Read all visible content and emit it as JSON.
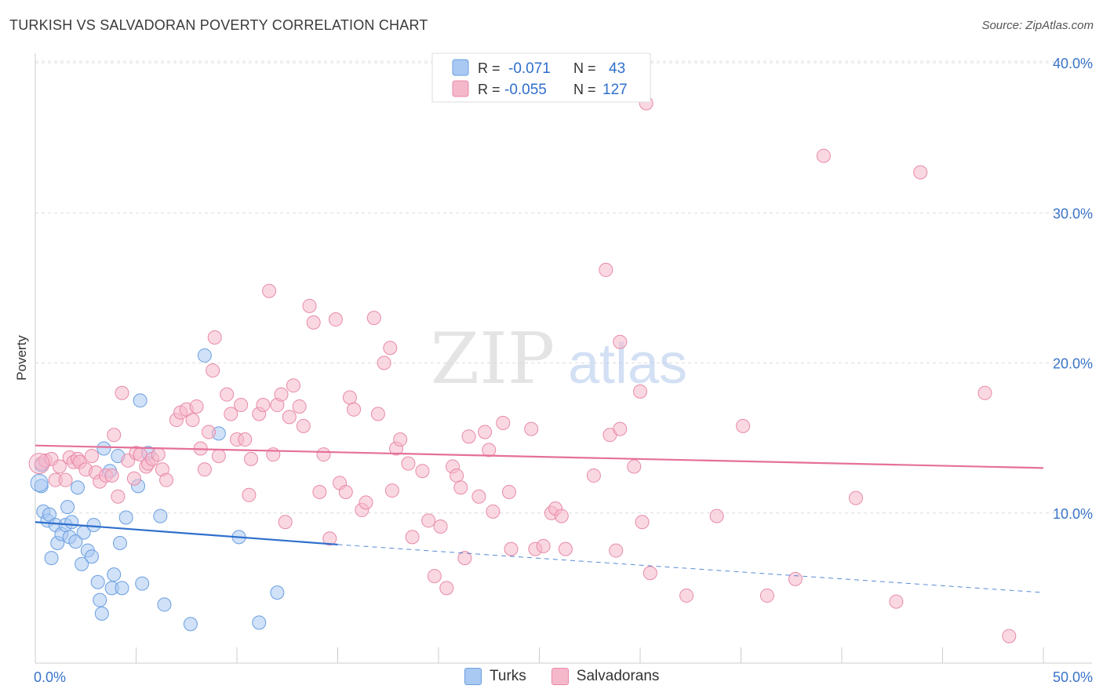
{
  "header": {
    "title": "TURKISH VS SALVADORAN POVERTY CORRELATION CHART",
    "source": "Source: ZipAtlas.com"
  },
  "watermark": {
    "zip": "ZIP",
    "atlas": "atlas"
  },
  "legend_top": {
    "rows": [
      {
        "r_label": "R =",
        "r_value": "-0.071",
        "n_label": "N =",
        "n_value": "43",
        "color": "#a9c8f2"
      },
      {
        "r_label": "R =",
        "r_value": "-0.055",
        "n_label": "N =",
        "n_value": "127",
        "color": "#f5b8cb"
      }
    ]
  },
  "legend_bottom": [
    {
      "label": "Turks",
      "color": "#a9c8f2"
    },
    {
      "label": "Salvadorans",
      "color": "#f5b8cb"
    }
  ],
  "chart_data": {
    "type": "scatter",
    "xlabel": "",
    "ylabel": "Poverty",
    "xlim": [
      0,
      50
    ],
    "ylim": [
      0,
      40
    ],
    "x_tick_labels": [
      "0.0%",
      "50.0%"
    ],
    "y_tick_labels": [
      "10.0%",
      "20.0%",
      "30.0%",
      "40.0%"
    ],
    "y_ticks": [
      10,
      20,
      30,
      40
    ],
    "grid": true,
    "legend_placement": "top-center",
    "series": [
      {
        "name": "Turks",
        "color": "#a9c8f2",
        "stroke": "#6a9fe0",
        "trend": {
          "x0": 0,
          "y0": 9.4,
          "x1": 15,
          "y1": 7.9,
          "extend_to": 50,
          "extend_y": 4.7,
          "color": "#2f6fcc"
        },
        "points": [
          [
            0.3,
            13.2
          ],
          [
            0.3,
            11.8
          ],
          [
            0.4,
            10.1
          ],
          [
            0.6,
            9.5
          ],
          [
            0.7,
            9.9
          ],
          [
            0.8,
            7.0
          ],
          [
            1.0,
            9.2
          ],
          [
            1.1,
            8.0
          ],
          [
            1.3,
            8.6
          ],
          [
            1.5,
            9.2
          ],
          [
            1.6,
            10.4
          ],
          [
            1.7,
            8.4
          ],
          [
            1.8,
            9.4
          ],
          [
            2.0,
            8.1
          ],
          [
            2.1,
            11.7
          ],
          [
            2.3,
            6.6
          ],
          [
            2.4,
            8.7
          ],
          [
            2.6,
            7.5
          ],
          [
            2.8,
            7.1
          ],
          [
            2.9,
            9.2
          ],
          [
            3.1,
            5.4
          ],
          [
            3.2,
            4.2
          ],
          [
            3.3,
            3.3
          ],
          [
            3.4,
            14.3
          ],
          [
            3.7,
            12.8
          ],
          [
            3.8,
            5.0
          ],
          [
            3.9,
            5.9
          ],
          [
            4.1,
            13.8
          ],
          [
            4.2,
            8.0
          ],
          [
            4.3,
            5.0
          ],
          [
            4.5,
            9.7
          ],
          [
            5.1,
            11.8
          ],
          [
            5.2,
            17.5
          ],
          [
            5.3,
            5.3
          ],
          [
            5.6,
            14.0
          ],
          [
            6.2,
            9.8
          ],
          [
            6.4,
            3.9
          ],
          [
            7.7,
            2.6
          ],
          [
            8.4,
            20.5
          ],
          [
            9.1,
            15.3
          ],
          [
            10.1,
            8.4
          ],
          [
            11.1,
            2.7
          ],
          [
            12.0,
            4.7
          ]
        ]
      },
      {
        "name": "Salvadorans",
        "color": "#f5b8cb",
        "stroke": "#e88aa8",
        "trend": {
          "x0": 0,
          "y0": 14.5,
          "x1": 50,
          "y1": 13.0,
          "color": "#e5709a"
        },
        "points": [
          [
            0.3,
            13.3
          ],
          [
            0.5,
            13.5
          ],
          [
            0.8,
            13.6
          ],
          [
            1.0,
            12.2
          ],
          [
            1.2,
            13.1
          ],
          [
            1.5,
            12.2
          ],
          [
            1.7,
            13.7
          ],
          [
            1.9,
            13.4
          ],
          [
            2.1,
            13.6
          ],
          [
            2.2,
            13.4
          ],
          [
            2.5,
            12.9
          ],
          [
            2.8,
            13.8
          ],
          [
            3.0,
            12.7
          ],
          [
            3.2,
            12.1
          ],
          [
            3.5,
            12.5
          ],
          [
            3.8,
            12.5
          ],
          [
            3.9,
            15.2
          ],
          [
            4.1,
            11.1
          ],
          [
            4.3,
            18.0
          ],
          [
            4.6,
            13.5
          ],
          [
            4.9,
            12.3
          ],
          [
            5.0,
            14.0
          ],
          [
            5.2,
            13.9
          ],
          [
            5.5,
            13.1
          ],
          [
            5.6,
            13.3
          ],
          [
            5.8,
            13.6
          ],
          [
            6.1,
            13.9
          ],
          [
            6.3,
            12.9
          ],
          [
            6.5,
            12.2
          ],
          [
            7.0,
            16.2
          ],
          [
            7.2,
            16.7
          ],
          [
            7.5,
            16.9
          ],
          [
            7.8,
            16.2
          ],
          [
            8.0,
            17.1
          ],
          [
            8.2,
            14.3
          ],
          [
            8.4,
            12.9
          ],
          [
            8.6,
            15.4
          ],
          [
            8.8,
            19.5
          ],
          [
            8.9,
            21.7
          ],
          [
            9.1,
            13.8
          ],
          [
            9.5,
            17.9
          ],
          [
            9.7,
            16.6
          ],
          [
            10.0,
            14.9
          ],
          [
            10.2,
            17.2
          ],
          [
            10.4,
            14.9
          ],
          [
            10.6,
            11.2
          ],
          [
            10.7,
            13.6
          ],
          [
            11.1,
            16.6
          ],
          [
            11.3,
            17.2
          ],
          [
            11.6,
            24.8
          ],
          [
            11.8,
            13.9
          ],
          [
            12.0,
            17.2
          ],
          [
            12.2,
            17.9
          ],
          [
            12.4,
            9.4
          ],
          [
            12.6,
            16.4
          ],
          [
            12.8,
            18.5
          ],
          [
            13.1,
            17.1
          ],
          [
            13.3,
            15.8
          ],
          [
            13.6,
            23.8
          ],
          [
            13.8,
            22.7
          ],
          [
            14.1,
            11.4
          ],
          [
            14.3,
            13.9
          ],
          [
            14.6,
            8.3
          ],
          [
            14.9,
            22.9
          ],
          [
            15.1,
            12.0
          ],
          [
            15.4,
            11.4
          ],
          [
            15.6,
            17.7
          ],
          [
            15.8,
            16.9
          ],
          [
            16.2,
            10.2
          ],
          [
            16.4,
            10.7
          ],
          [
            16.8,
            23.0
          ],
          [
            17.0,
            16.6
          ],
          [
            17.3,
            20.0
          ],
          [
            17.6,
            21.0
          ],
          [
            17.7,
            11.5
          ],
          [
            17.9,
            14.3
          ],
          [
            18.1,
            14.9
          ],
          [
            18.5,
            13.3
          ],
          [
            18.7,
            8.4
          ],
          [
            19.2,
            12.8
          ],
          [
            19.5,
            9.5
          ],
          [
            19.8,
            5.8
          ],
          [
            20.1,
            9.1
          ],
          [
            20.4,
            5.0
          ],
          [
            20.7,
            13.1
          ],
          [
            20.9,
            12.5
          ],
          [
            21.1,
            11.7
          ],
          [
            21.3,
            7.0
          ],
          [
            21.5,
            15.1
          ],
          [
            22.0,
            11.1
          ],
          [
            22.3,
            15.4
          ],
          [
            22.5,
            14.2
          ],
          [
            22.7,
            10.1
          ],
          [
            23.2,
            16.0
          ],
          [
            23.5,
            11.4
          ],
          [
            23.6,
            7.6
          ],
          [
            24.6,
            15.6
          ],
          [
            24.8,
            7.6
          ],
          [
            25.2,
            7.8
          ],
          [
            25.6,
            10.0
          ],
          [
            25.8,
            10.3
          ],
          [
            26.1,
            9.8
          ],
          [
            26.3,
            7.6
          ],
          [
            27.7,
            12.5
          ],
          [
            28.3,
            26.2
          ],
          [
            28.5,
            15.2
          ],
          [
            28.8,
            7.5
          ],
          [
            29.0,
            15.6
          ],
          [
            29.0,
            21.4
          ],
          [
            29.7,
            13.1
          ],
          [
            30.0,
            18.1
          ],
          [
            30.1,
            9.4
          ],
          [
            30.5,
            6.0
          ],
          [
            32.3,
            4.5
          ],
          [
            33.8,
            9.8
          ],
          [
            35.1,
            15.8
          ],
          [
            36.3,
            4.5
          ],
          [
            37.7,
            5.6
          ],
          [
            39.1,
            33.8
          ],
          [
            40.7,
            11.0
          ],
          [
            42.7,
            4.1
          ],
          [
            43.9,
            32.7
          ],
          [
            47.1,
            18.0
          ],
          [
            48.3,
            1.8
          ],
          [
            30.3,
            37.3
          ]
        ]
      }
    ]
  }
}
